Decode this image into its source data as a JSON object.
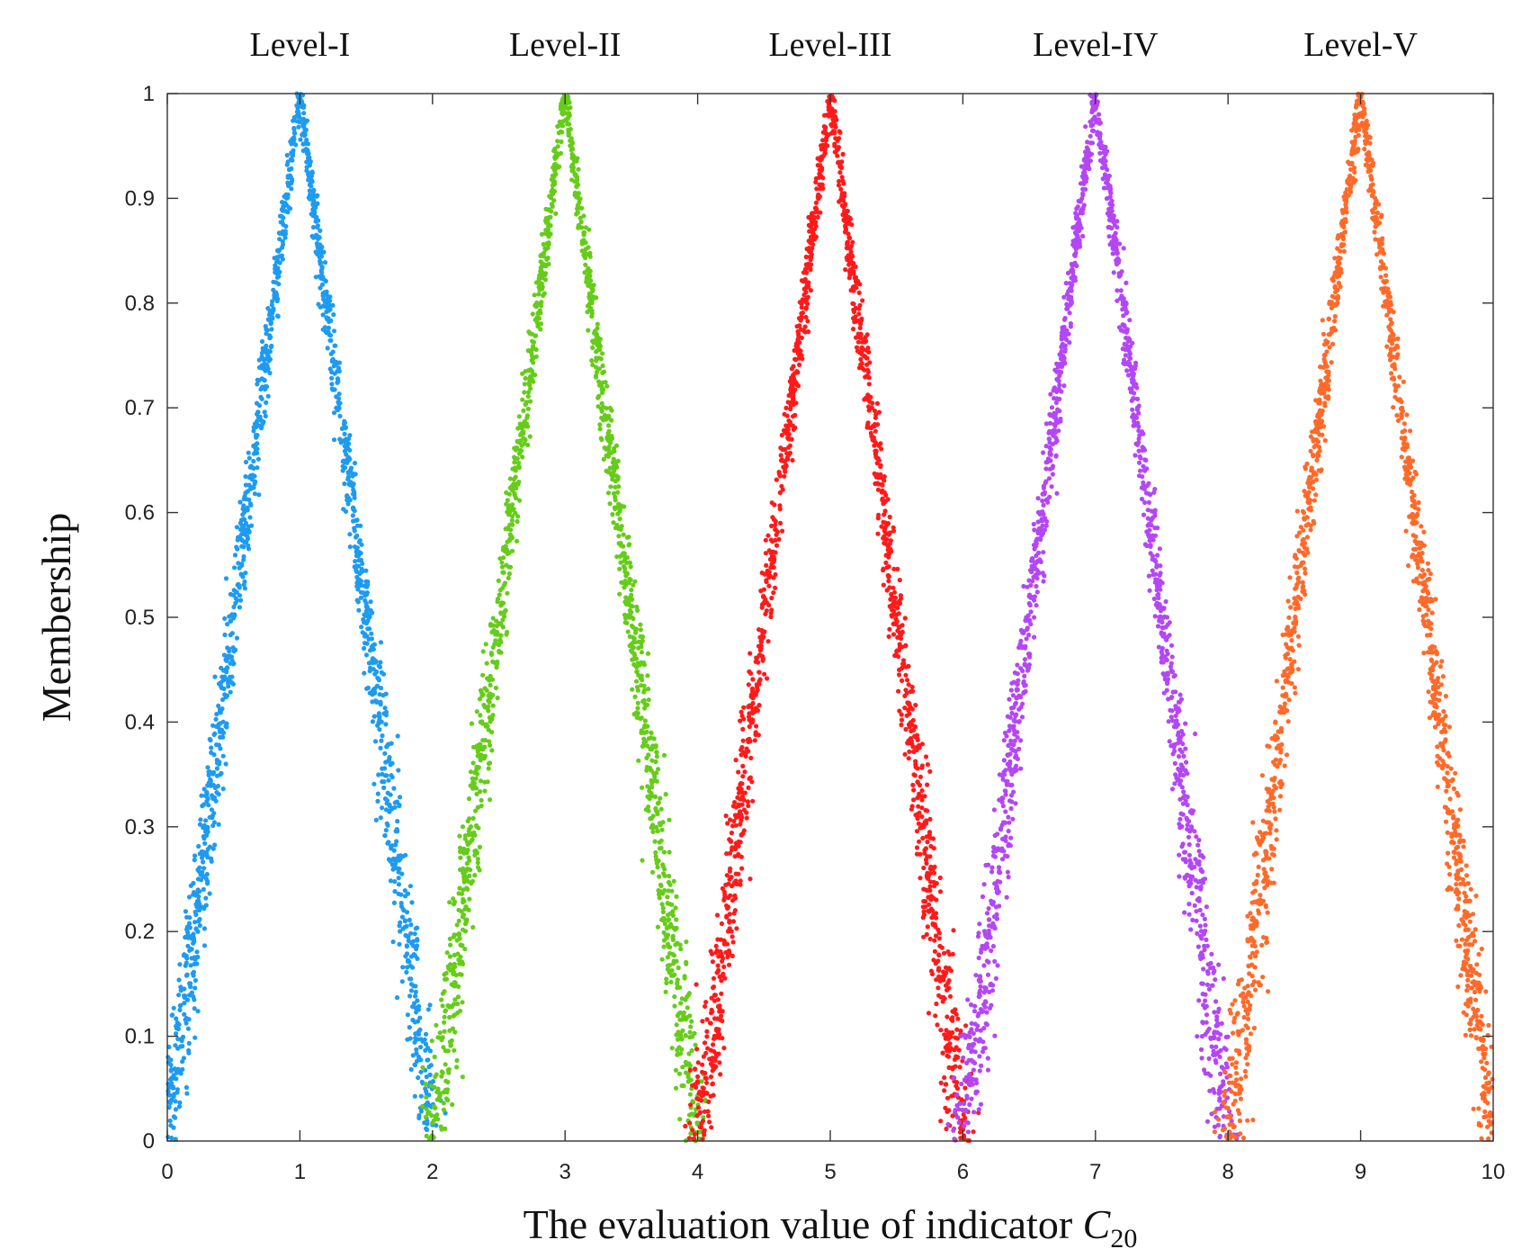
{
  "chart_data": {
    "type": "scatter",
    "title": "",
    "xlabel": "The evaluation value of indicator ",
    "xlabel_symbol": "C",
    "xlabel_subscript": "20",
    "ylabel": "Membership",
    "xlim": [
      0,
      10
    ],
    "ylim": [
      0,
      1
    ],
    "xticks": [
      0,
      1,
      2,
      3,
      4,
      5,
      6,
      7,
      8,
      9,
      10
    ],
    "yticks": [
      0,
      0.1,
      0.2,
      0.3,
      0.4,
      0.5,
      0.6,
      0.7,
      0.8,
      0.9,
      1
    ],
    "xtick_labels": [
      "0",
      "1",
      "2",
      "3",
      "4",
      "5",
      "6",
      "7",
      "8",
      "9",
      "10"
    ],
    "ytick_labels": [
      "0",
      "0.1",
      "0.2",
      "0.3",
      "0.4",
      "0.5",
      "0.6",
      "0.7",
      "0.8",
      "0.9",
      "1"
    ],
    "grid": false,
    "points_per_series": 1500,
    "series": [
      {
        "name": "Level-I",
        "center": 1,
        "half_width": 1.0,
        "color": "#1e9bf0"
      },
      {
        "name": "Level-II",
        "center": 3,
        "half_width": 1.0,
        "color": "#66cc1a"
      },
      {
        "name": "Level-III",
        "center": 5,
        "half_width": 1.0,
        "color": "#ff1a1a"
      },
      {
        "name": "Level-IV",
        "center": 7,
        "half_width": 1.0,
        "color": "#b347f5"
      },
      {
        "name": "Level-V",
        "center": 9,
        "half_width": 1.0,
        "color": "#ff6a2a"
      }
    ]
  }
}
